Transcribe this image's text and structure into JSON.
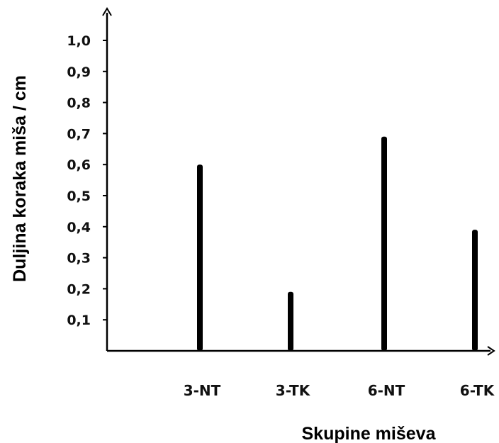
{
  "chart_data": {
    "type": "bar",
    "categories": [
      "3-NT",
      "3-TK",
      "6-NT",
      "6-TK"
    ],
    "values": [
      0.6,
      0.19,
      0.69,
      0.39
    ],
    "ylim": [
      0,
      1.0
    ],
    "yticks": [
      0.1,
      0.2,
      0.3,
      0.4,
      0.5,
      0.6,
      0.7,
      0.8,
      0.9,
      1.0
    ],
    "ytick_labels": [
      "0,1",
      "0,2",
      "0,3",
      "0,4",
      "0,5",
      "0,6",
      "0,7",
      "0,8",
      "0,9",
      "1,0"
    ],
    "xlabel": "Skupine miševa",
    "ylabel": "Duljina koraka miša / cm",
    "bar_color": "#000000",
    "grid": false
  }
}
